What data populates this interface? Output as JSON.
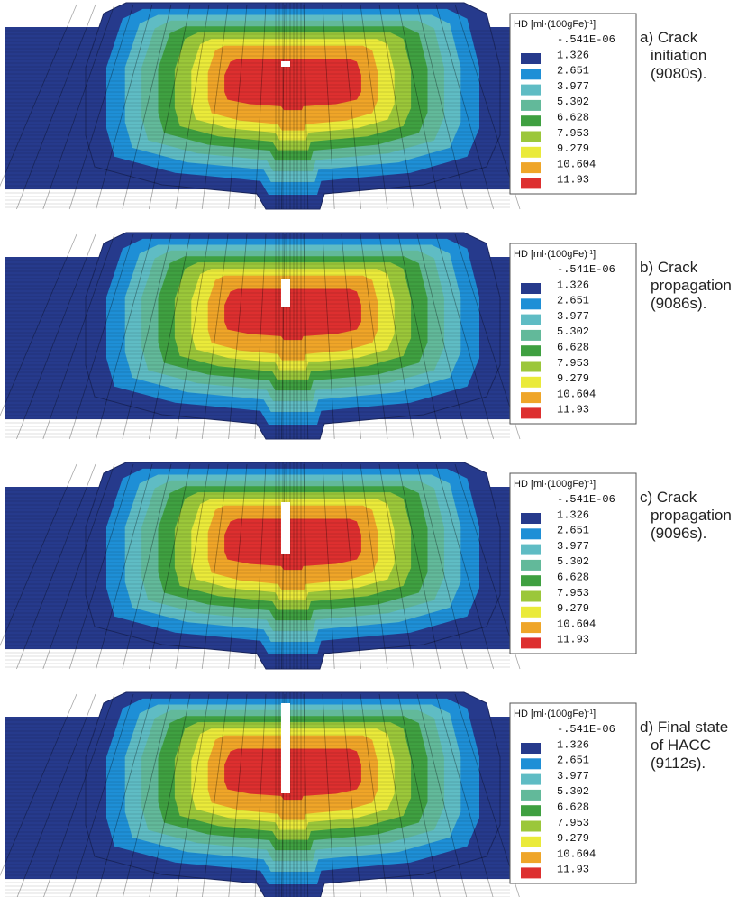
{
  "colors": [
    "#263a8c",
    "#1e8fd6",
    "#5fbcc4",
    "#62b99a",
    "#3fa041",
    "#9bc73a",
    "#eaea3a",
    "#efa528",
    "#dd2f2f"
  ],
  "panels": [
    {
      "legend": {
        "title": "HD [ml·(100gFe)",
        "title_sup": "-1",
        "title_end": "]",
        "labels": [
          "-.541E-06",
          "1.326",
          "2.651",
          "3.977",
          "5.302",
          "6.628",
          "7.953",
          "9.279",
          "10.604",
          "11.93"
        ]
      },
      "caption": [
        "a) Crack",
        "initiation",
        "(9080s)."
      ]
    },
    {
      "legend": {
        "title": "HD [ml·(100gFe)",
        "title_sup": "-1",
        "title_end": "]",
        "labels": [
          "-.541E-06",
          "1.326",
          "2.651",
          "3.977",
          "5.302",
          "6.628",
          "7.953",
          "9.279",
          "10.604",
          "11.93"
        ]
      },
      "caption": [
        "b) Crack",
        "propagation",
        "(9086s)."
      ]
    },
    {
      "legend": {
        "title": "HD [ml·(100gFe)",
        "title_sup": "-1",
        "title_end": "]",
        "labels": [
          "-.541E-06",
          "1.326",
          "2.651",
          "3.977",
          "5.302",
          "6.628",
          "7.953",
          "9.279",
          "10.604",
          "11.93"
        ]
      },
      "caption": [
        "c) Crack",
        "propagation",
        "(9096s)."
      ]
    },
    {
      "legend": {
        "title": "HD [ml·(100gFe)",
        "title_sup": "-1",
        "title_end": "]",
        "labels": [
          "-.541E-06",
          "1.326",
          "2.651",
          "3.977",
          "5.302",
          "6.628",
          "7.953",
          "9.279",
          "10.604",
          "11.93"
        ]
      },
      "caption": [
        "d) Final state",
        "of HACC",
        "(9112s)."
      ]
    }
  ]
}
